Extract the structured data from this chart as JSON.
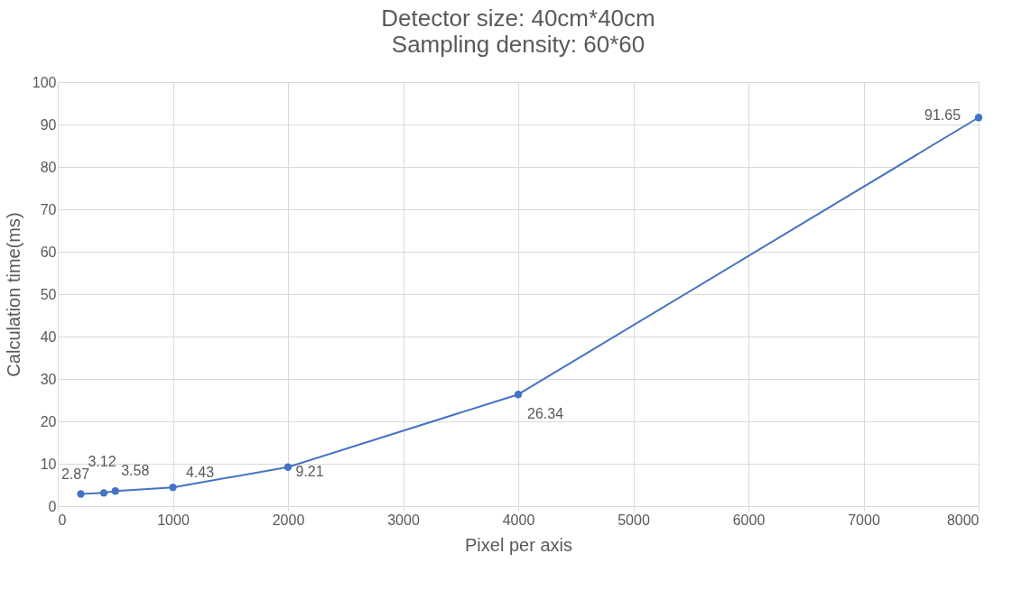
{
  "chart_data": {
    "type": "line",
    "title": "Detector size: 40cm*40cm",
    "subtitle": "Sampling density: 60*60",
    "xlabel": "Pixel per axis",
    "ylabel": "Calculation time(ms)",
    "x": [
      200,
      400,
      500,
      1000,
      2000,
      4000,
      8000
    ],
    "series": [
      {
        "color": "#4472c4",
        "values": [
          2.87,
          3.12,
          3.58,
          4.43,
          9.21,
          26.34,
          91.65
        ]
      }
    ],
    "xlim": [
      0,
      8000
    ],
    "xticks": [
      0,
      1000,
      2000,
      3000,
      4000,
      5000,
      6000,
      7000,
      8000
    ],
    "ylim": [
      0,
      100
    ],
    "yticks": [
      0,
      10,
      20,
      30,
      40,
      50,
      60,
      70,
      80,
      90,
      100
    ],
    "grid": true,
    "marker": "circle",
    "line_style": "solid",
    "data_labels": true
  }
}
